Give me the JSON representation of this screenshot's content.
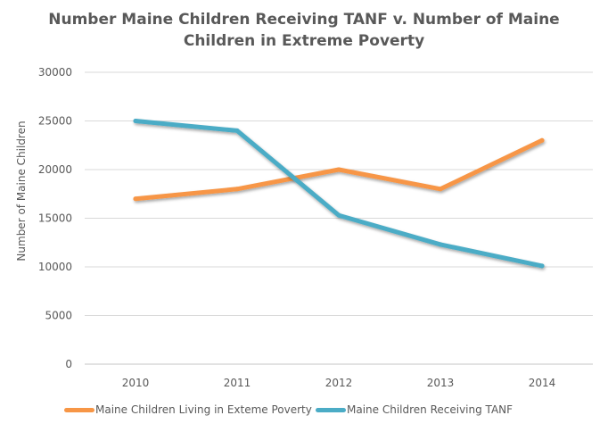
{
  "chart_data": {
    "type": "line",
    "title_lines": [
      "Number Maine Children Receiving TANF v. Number of Maine",
      "Children in Extreme Poverty"
    ],
    "xlabel": "",
    "ylabel": "Number of Maine Children",
    "categories": [
      "2010",
      "2011",
      "2012",
      "2013",
      "2014"
    ],
    "yticks": [
      0,
      5000,
      10000,
      15000,
      20000,
      25000,
      30000
    ],
    "ylim": [
      0,
      30000
    ],
    "grid": true,
    "legend_position": "bottom",
    "series": [
      {
        "name": "Maine Children Living in Exteme Poverty",
        "color": "#F79646",
        "values": [
          17000,
          18000,
          20000,
          18000,
          23000
        ]
      },
      {
        "name": "Maine Children Receiving TANF",
        "color": "#4BACC6",
        "values": [
          25000,
          24000,
          15300,
          12300,
          10100
        ]
      }
    ]
  }
}
